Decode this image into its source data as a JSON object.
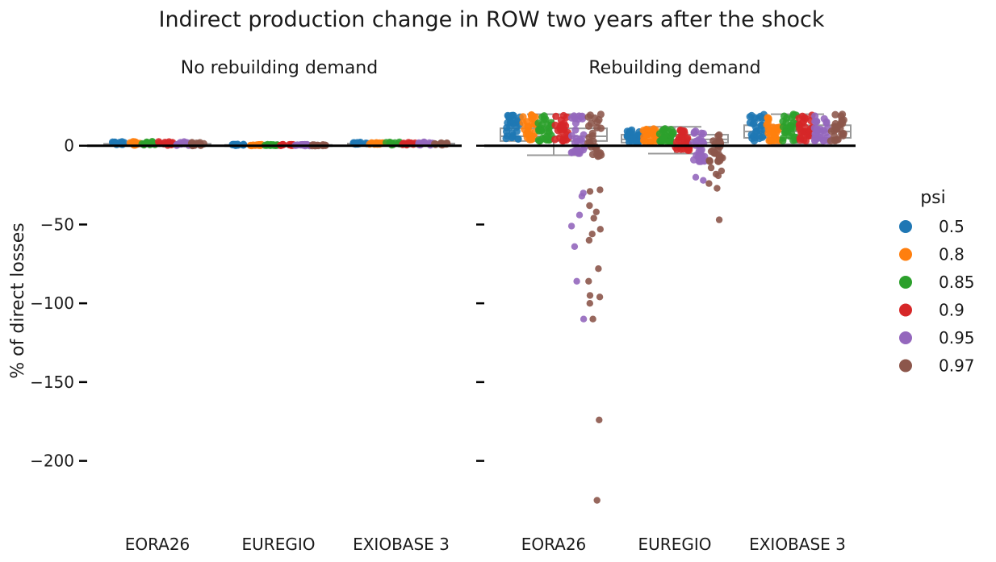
{
  "chart_data": {
    "type": "scatter",
    "title": "Indirect production change in ROW two years after the shock",
    "ylabel": "% of direct losses",
    "ylim": [
      -235,
      28
    ],
    "yticks": [
      0,
      -50,
      -100,
      -150,
      -200
    ],
    "ytick_labels": [
      "0",
      "−50",
      "−100",
      "−150",
      "−200"
    ],
    "categories": [
      "EORA26",
      "EUREGIO",
      "EXIOBASE 3"
    ],
    "hue_title": "psi",
    "hue_levels": [
      "0.5",
      "0.8",
      "0.85",
      "0.9",
      "0.95",
      "0.97"
    ],
    "colors": [
      "#1f77b4",
      "#ff7f0e",
      "#2ca02c",
      "#d62728",
      "#9467bd",
      "#8c564b"
    ],
    "legend_position": "right",
    "panels": [
      {
        "title": "No rebuilding demand",
        "boxes": [
          {
            "category": "EORA26",
            "q1": 0.3,
            "median": 0.8,
            "q3": 1.2,
            "whisker_low": 0,
            "whisker_high": 2
          },
          {
            "category": "EUREGIO",
            "q1": 0.1,
            "median": 0.3,
            "q3": 0.5,
            "whisker_low": 0,
            "whisker_high": 1
          },
          {
            "category": "EXIOBASE 3",
            "q1": 0.4,
            "median": 0.9,
            "q3": 1.4,
            "whisker_low": 0,
            "whisker_high": 2.2
          }
        ],
        "series": [
          {
            "name": "0.5",
            "points": [
              [
                0,
                0.5,
                2.8
              ],
              [
                1,
                0.1,
                0.9
              ],
              [
                2,
                0.6,
                2.5
              ]
            ]
          },
          {
            "name": "0.8",
            "points": [
              [
                0,
                0.4,
                2.6
              ],
              [
                1,
                0.1,
                0.8
              ],
              [
                2,
                0.5,
                2.4
              ]
            ]
          },
          {
            "name": "0.85",
            "points": [
              [
                0,
                0.4,
                2.7
              ],
              [
                1,
                0.1,
                0.8
              ],
              [
                2,
                0.5,
                2.4
              ]
            ]
          },
          {
            "name": "0.9",
            "points": [
              [
                0,
                0.3,
                2.6
              ],
              [
                1,
                0.1,
                0.8
              ],
              [
                2,
                0.5,
                2.3
              ]
            ]
          },
          {
            "name": "0.95",
            "points": [
              [
                0,
                0.2,
                2.5
              ],
              [
                1,
                0.0,
                0.7
              ],
              [
                2,
                0.4,
                2.2
              ]
            ]
          },
          {
            "name": "0.97",
            "points": [
              [
                0,
                0.1,
                2.3
              ],
              [
                1,
                0.0,
                0.6
              ],
              [
                2,
                0.3,
                2.1
              ]
            ]
          }
        ]
      },
      {
        "title": "Rebuilding demand",
        "boxes": [
          {
            "category": "EORA26",
            "q1": 3,
            "median": 6,
            "q3": 11,
            "whisker_low": -6,
            "whisker_high": 20
          },
          {
            "category": "EUREGIO",
            "q1": 2,
            "median": 4,
            "q3": 7,
            "whisker_low": -5,
            "whisker_high": 12
          },
          {
            "category": "EXIOBASE 3",
            "q1": 5,
            "median": 9,
            "q3": 13,
            "whisker_low": 1,
            "whisker_high": 20
          }
        ],
        "series": [
          {
            "name": "0.5",
            "points": [
              [
                0,
                3,
                20
              ],
              [
                1,
                2,
                11
              ],
              [
                2,
                3,
                20
              ]
            ]
          },
          {
            "name": "0.8",
            "points": [
              [
                0,
                3,
                20
              ],
              [
                1,
                2,
                11
              ],
              [
                2,
                3,
                20
              ]
            ]
          },
          {
            "name": "0.85",
            "points": [
              [
                0,
                3,
                20
              ],
              [
                1,
                2,
                11
              ],
              [
                2,
                3,
                20
              ]
            ]
          },
          {
            "name": "0.9",
            "points": [
              [
                0,
                3,
                20
              ],
              [
                1,
                -3,
                11
              ],
              [
                2,
                3,
                20
              ]
            ]
          },
          {
            "name": "0.95",
            "points": [
              [
                0,
                -5,
                20,
                -30,
                -32,
                -44,
                -51,
                -64,
                -86,
                -110
              ],
              [
                1,
                -10,
                10,
                -20,
                -22
              ],
              [
                2,
                3,
                20
              ]
            ]
          },
          {
            "name": "0.97",
            "points": [
              [
                0,
                -7,
                20,
                -28,
                -29,
                -38,
                -42,
                -46,
                -53,
                -56,
                -60,
                -78,
                -86,
                -95,
                -96,
                -100,
                -110,
                -174,
                -225
              ],
              [
                1,
                -10,
                9,
                -14,
                -16,
                -18,
                -19,
                -24,
                -27,
                -47
              ],
              [
                2,
                3,
                20
              ]
            ]
          }
        ]
      }
    ]
  }
}
